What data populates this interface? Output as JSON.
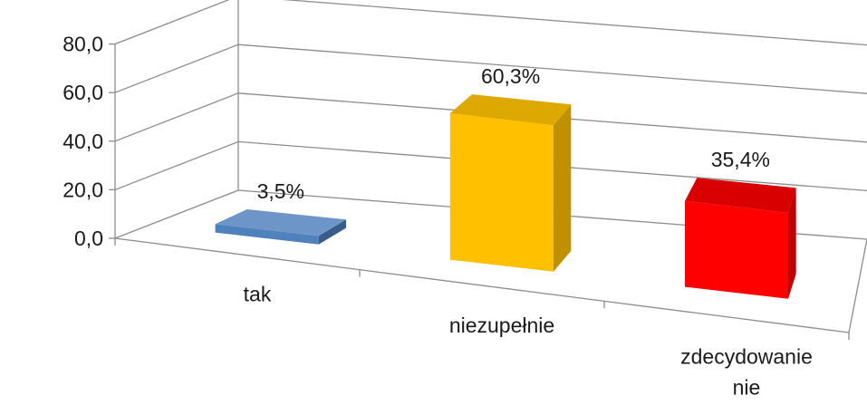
{
  "chart_data": {
    "type": "bar",
    "style": "3d-column",
    "categories": [
      "tak",
      "niezupełnie",
      "zdecydowanie nie"
    ],
    "category_lines": [
      [
        "tak"
      ],
      [
        "niezupełnie"
      ],
      [
        "zdecydowanie",
        "nie"
      ]
    ],
    "values": [
      3.5,
      60.3,
      35.4
    ],
    "data_labels": [
      "3,5%",
      "60,3%",
      "35,4%"
    ],
    "yticks": [
      "0,0",
      "20,0",
      "40,0",
      "60,0",
      "80,0"
    ],
    "ylim": [
      0,
      80
    ],
    "grid": true,
    "legend": "none",
    "colors": [
      {
        "front": "#4F81BD",
        "side": "#385D8A",
        "top": "#6D95C8"
      },
      {
        "front": "#FFC000",
        "side": "#BF9000",
        "top": "#DDA800"
      },
      {
        "front": "#FF0000",
        "side": "#C00000",
        "top": "#D80000"
      }
    ]
  }
}
